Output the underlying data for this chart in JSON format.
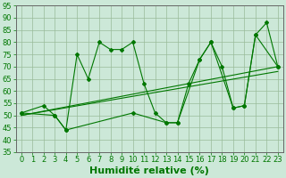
{
  "xlabel": "Humidité relative (%)",
  "xlim": [
    -0.5,
    23.5
  ],
  "ylim": [
    35,
    95
  ],
  "yticks": [
    35,
    40,
    45,
    50,
    55,
    60,
    65,
    70,
    75,
    80,
    85,
    90,
    95
  ],
  "xticks": [
    0,
    1,
    2,
    3,
    4,
    5,
    6,
    7,
    8,
    9,
    10,
    11,
    12,
    13,
    14,
    15,
    16,
    17,
    18,
    19,
    20,
    21,
    22,
    23
  ],
  "bg_color": "#cce8d8",
  "grid_color": "#99bb99",
  "line_color": "#007700",
  "line1_x": [
    0,
    2,
    3,
    4,
    5,
    6,
    7,
    8,
    9,
    10,
    11,
    12,
    13,
    14,
    16,
    17,
    18,
    19,
    20,
    21,
    22,
    23
  ],
  "line1_y": [
    51,
    54,
    50,
    44,
    75,
    65,
    80,
    77,
    77,
    80,
    63,
    51,
    47,
    47,
    73,
    80,
    70,
    53,
    54,
    83,
    88,
    70
  ],
  "line2_x": [
    0,
    3,
    4,
    10,
    13,
    14,
    15,
    16,
    17,
    19,
    20,
    21,
    23
  ],
  "line2_y": [
    51,
    50,
    44,
    51,
    47,
    47,
    63,
    73,
    80,
    53,
    54,
    83,
    70
  ],
  "line3_x": [
    0,
    23
  ],
  "line3_y": [
    50,
    70
  ],
  "line4_x": [
    0,
    23
  ],
  "line4_y": [
    50,
    68
  ],
  "font_size_xlabel": 8,
  "font_size_ticks": 6
}
